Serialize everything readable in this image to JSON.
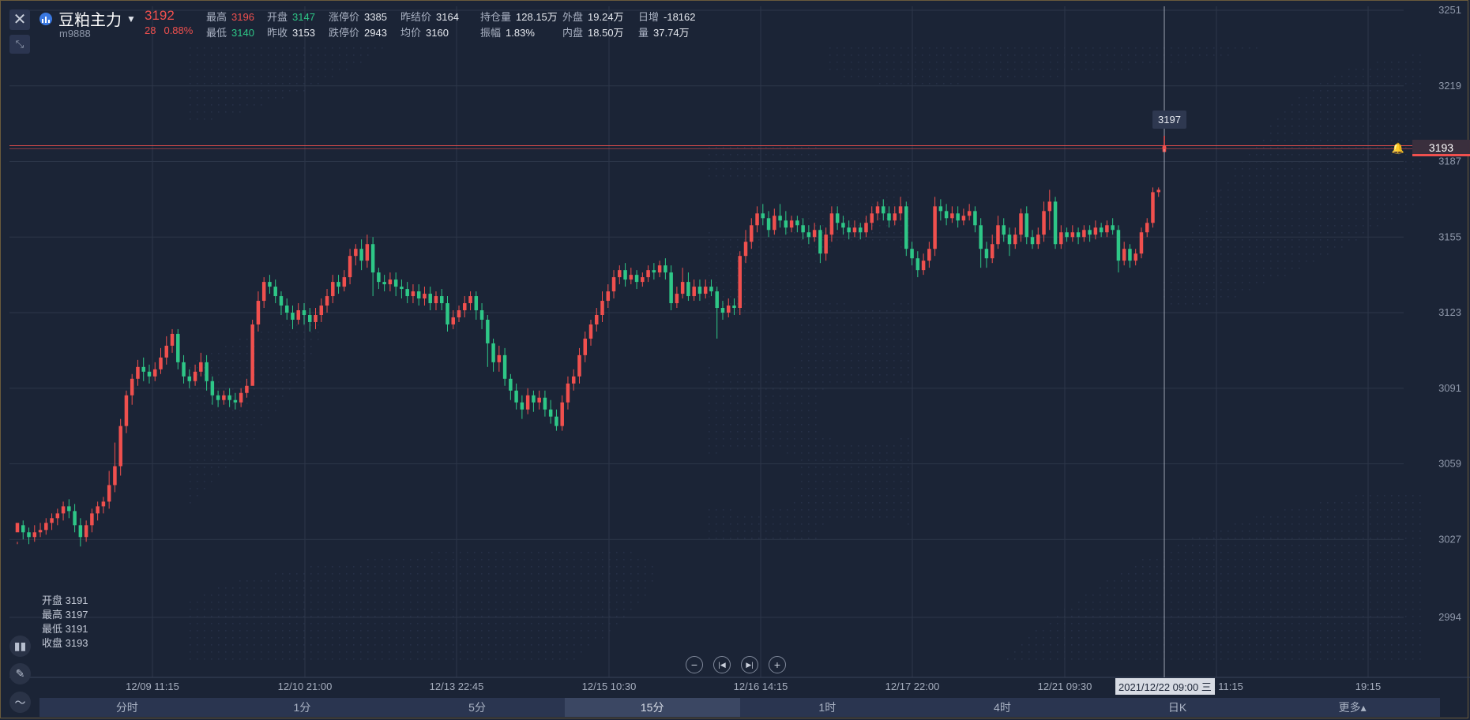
{
  "header": {
    "symbol_name": "豆粕主力",
    "symbol_code": "m9888",
    "last_price": "3192",
    "change": "28",
    "change_pct": "0.88%",
    "stats": [
      {
        "label": "最高",
        "value": "3196",
        "color": "up"
      },
      {
        "label": "开盘",
        "value": "3147",
        "color": "dn"
      },
      {
        "label": "涨停价",
        "value": "3385",
        "color": ""
      },
      {
        "label": "昨结价",
        "value": "3164",
        "color": ""
      },
      {
        "label": "持仓量",
        "value": "128.15万",
        "color": ""
      },
      {
        "label": "外盘",
        "value": "19.24万",
        "color": ""
      },
      {
        "label": "日增",
        "value": "-18162",
        "color": ""
      },
      {
        "label": "最低",
        "value": "3140",
        "color": "dn"
      },
      {
        "label": "昨收",
        "value": "3153",
        "color": ""
      },
      {
        "label": "跌停价",
        "value": "2943",
        "color": ""
      },
      {
        "label": "均价",
        "value": "3160",
        "color": ""
      },
      {
        "label": "振幅",
        "value": "1.83%",
        "color": ""
      },
      {
        "label": "内盘",
        "value": "18.50万",
        "color": ""
      },
      {
        "label": "量",
        "value": "37.74万",
        "color": ""
      }
    ]
  },
  "ohlc_panel": {
    "open": "开盘 3191",
    "high": "最高 3197",
    "low": "最低 3191",
    "close": "收盘 3193"
  },
  "crosshair": {
    "price": "3197",
    "date": "2021/12/22 09:00 三"
  },
  "last_price_tag": "3193",
  "timeframes": [
    "分时",
    "1分",
    "5分",
    "15分",
    "1时",
    "4时",
    "日K",
    "更多▴"
  ],
  "active_timeframe": 3,
  "colors": {
    "up": "#f0504e",
    "down": "#2ec787",
    "background": "#1b2436",
    "grid": "#2c3649"
  },
  "icons": {
    "close": "close-icon",
    "expand": "expand-icon",
    "indicator": "indicator-icon",
    "draw": "pencil-icon",
    "line": "line-chart-icon",
    "zoom_out": "minus-icon",
    "zoom_in": "plus-icon",
    "first": "skip-start-icon",
    "last": "skip-end-icon",
    "alert": "bell-icon"
  },
  "chart_data": {
    "type": "candlestick",
    "title": "",
    "y_ticks": [
      3251,
      3219,
      3187,
      3155,
      3123,
      3091,
      3059,
      3027,
      2994
    ],
    "ylim": [
      2978,
      3255
    ],
    "x_ticks": [
      "12/09 11:15",
      "12/10 21:00",
      "12/13 22:45",
      "12/15 10:30",
      "12/16 14:15",
      "12/17 22:00",
      "12/21 09:30",
      "12/22 11:15",
      "19:15"
    ],
    "grid": true,
    "current_price_line": 3193,
    "crosshair_price": 3197,
    "candles": [
      [
        3030,
        3034,
        3026,
        3025
      ],
      [
        3033,
        3030,
        3035,
        3027
      ],
      [
        3030,
        3028,
        3032,
        3025
      ],
      [
        3028,
        3030,
        3033,
        3026
      ],
      [
        3030,
        3031,
        3034,
        3028
      ],
      [
        3031,
        3034,
        3036,
        3029
      ],
      [
        3034,
        3036,
        3038,
        3031
      ],
      [
        3036,
        3038,
        3040,
        3033
      ],
      [
        3038,
        3041,
        3043,
        3035
      ],
      [
        3041,
        3039,
        3044,
        3036
      ],
      [
        3039,
        3033,
        3042,
        3030
      ],
      [
        3033,
        3028,
        3036,
        3024
      ],
      [
        3028,
        3033,
        3035,
        3026
      ],
      [
        3033,
        3038,
        3040,
        3030
      ],
      [
        3038,
        3041,
        3043,
        3035
      ],
      [
        3041,
        3043,
        3045,
        3038
      ],
      [
        3043,
        3050,
        3056,
        3040
      ],
      [
        3050,
        3058,
        3068,
        3047
      ],
      [
        3058,
        3075,
        3078,
        3054
      ],
      [
        3075,
        3088,
        3090,
        3072
      ],
      [
        3088,
        3095,
        3097,
        3084
      ],
      [
        3095,
        3100,
        3103,
        3092
      ],
      [
        3100,
        3098,
        3104,
        3094
      ],
      [
        3098,
        3096,
        3101,
        3093
      ],
      [
        3096,
        3099,
        3102,
        3094
      ],
      [
        3099,
        3104,
        3108,
        3097
      ],
      [
        3104,
        3109,
        3113,
        3101
      ],
      [
        3109,
        3114,
        3116,
        3106
      ],
      [
        3114,
        3102,
        3116,
        3099
      ],
      [
        3102,
        3096,
        3105,
        3093
      ],
      [
        3096,
        3094,
        3099,
        3091
      ],
      [
        3094,
        3098,
        3101,
        3092
      ],
      [
        3098,
        3102,
        3106,
        3096
      ],
      [
        3102,
        3094,
        3105,
        3090
      ],
      [
        3094,
        3088,
        3096,
        3084
      ],
      [
        3088,
        3086,
        3090,
        3083
      ],
      [
        3086,
        3088,
        3090,
        3084
      ],
      [
        3088,
        3086,
        3091,
        3083
      ],
      [
        3086,
        3085,
        3089,
        3082
      ],
      [
        3085,
        3089,
        3091,
        3083
      ],
      [
        3089,
        3092,
        3095,
        3087
      ],
      [
        3092,
        3118,
        3120,
        3111
      ],
      [
        3118,
        3128,
        3132,
        3115
      ],
      [
        3128,
        3136,
        3138,
        3125
      ],
      [
        3136,
        3134,
        3139,
        3131
      ],
      [
        3134,
        3130,
        3137,
        3127
      ],
      [
        3130,
        3126,
        3132,
        3122
      ],
      [
        3126,
        3123,
        3129,
        3120
      ],
      [
        3123,
        3120,
        3126,
        3116
      ],
      [
        3120,
        3124,
        3127,
        3118
      ],
      [
        3124,
        3122,
        3127,
        3118
      ],
      [
        3122,
        3119,
        3125,
        3115
      ],
      [
        3119,
        3122,
        3125,
        3116
      ],
      [
        3122,
        3126,
        3129,
        3119
      ],
      [
        3126,
        3130,
        3133,
        3123
      ],
      [
        3130,
        3136,
        3139,
        3127
      ],
      [
        3136,
        3134,
        3139,
        3131
      ],
      [
        3134,
        3138,
        3141,
        3132
      ],
      [
        3138,
        3147,
        3150,
        3135
      ],
      [
        3147,
        3150,
        3152,
        3143
      ],
      [
        3150,
        3145,
        3154,
        3141
      ],
      [
        3145,
        3152,
        3156,
        3142
      ],
      [
        3152,
        3140,
        3155,
        3130
      ],
      [
        3140,
        3136,
        3142,
        3133
      ],
      [
        3136,
        3135,
        3139,
        3132
      ],
      [
        3135,
        3137,
        3140,
        3132
      ],
      [
        3137,
        3134,
        3140,
        3130
      ],
      [
        3134,
        3133,
        3137,
        3129
      ],
      [
        3133,
        3130,
        3136,
        3127
      ],
      [
        3130,
        3132,
        3135,
        3127
      ],
      [
        3132,
        3129,
        3135,
        3126
      ],
      [
        3129,
        3131,
        3134,
        3126
      ],
      [
        3131,
        3127,
        3134,
        3124
      ],
      [
        3127,
        3130,
        3132,
        3124
      ],
      [
        3130,
        3127,
        3133,
        3124
      ],
      [
        3127,
        3118,
        3130,
        3115
      ],
      [
        3118,
        3121,
        3124,
        3116
      ],
      [
        3121,
        3124,
        3126,
        3119
      ],
      [
        3124,
        3127,
        3130,
        3121
      ],
      [
        3127,
        3130,
        3132,
        3124
      ],
      [
        3130,
        3124,
        3132,
        3120
      ],
      [
        3124,
        3120,
        3127,
        3116
      ],
      [
        3120,
        3110,
        3122,
        3100
      ],
      [
        3110,
        3102,
        3112,
        3098
      ],
      [
        3102,
        3105,
        3109,
        3098
      ],
      [
        3105,
        3095,
        3108,
        3092
      ],
      [
        3095,
        3090,
        3097,
        3086
      ],
      [
        3090,
        3085,
        3093,
        3082
      ],
      [
        3085,
        3082,
        3088,
        3078
      ],
      [
        3082,
        3088,
        3091,
        3080
      ],
      [
        3088,
        3085,
        3090,
        3081
      ],
      [
        3085,
        3087,
        3090,
        3082
      ],
      [
        3087,
        3082,
        3090,
        3079
      ],
      [
        3082,
        3079,
        3086,
        3076
      ],
      [
        3079,
        3075,
        3082,
        3073
      ],
      [
        3075,
        3085,
        3088,
        3073
      ],
      [
        3085,
        3093,
        3096,
        3082
      ],
      [
        3093,
        3096,
        3099,
        3090
      ],
      [
        3096,
        3105,
        3108,
        3093
      ],
      [
        3105,
        3112,
        3115,
        3102
      ],
      [
        3112,
        3118,
        3120,
        3109
      ],
      [
        3118,
        3122,
        3125,
        3115
      ],
      [
        3122,
        3128,
        3132,
        3119
      ],
      [
        3128,
        3132,
        3135,
        3125
      ],
      [
        3132,
        3138,
        3141,
        3129
      ],
      [
        3138,
        3141,
        3143,
        3135
      ],
      [
        3141,
        3137,
        3144,
        3134
      ],
      [
        3137,
        3139,
        3142,
        3135
      ],
      [
        3139,
        3136,
        3141,
        3133
      ],
      [
        3136,
        3138,
        3140,
        3134
      ],
      [
        3138,
        3141,
        3143,
        3136
      ],
      [
        3141,
        3140,
        3144,
        3137
      ],
      [
        3140,
        3143,
        3145,
        3138
      ],
      [
        3143,
        3140,
        3146,
        3137
      ],
      [
        3140,
        3127,
        3143,
        3124
      ],
      [
        3127,
        3131,
        3134,
        3125
      ],
      [
        3131,
        3136,
        3142,
        3129
      ],
      [
        3136,
        3130,
        3140,
        3128
      ],
      [
        3130,
        3134,
        3137,
        3128
      ],
      [
        3134,
        3131,
        3137,
        3128
      ],
      [
        3131,
        3134,
        3137,
        3129
      ],
      [
        3134,
        3132,
        3137,
        3130
      ],
      [
        3132,
        3125,
        3134,
        3112
      ],
      [
        3125,
        3123,
        3128,
        3120
      ],
      [
        3123,
        3126,
        3129,
        3121
      ],
      [
        3126,
        3125,
        3129,
        3122
      ],
      [
        3125,
        3147,
        3149,
        3122
      ],
      [
        3147,
        3153,
        3158,
        3144
      ],
      [
        3153,
        3160,
        3163,
        3150
      ],
      [
        3160,
        3165,
        3168,
        3157
      ],
      [
        3165,
        3163,
        3169,
        3160
      ],
      [
        3163,
        3158,
        3166,
        3155
      ],
      [
        3158,
        3164,
        3167,
        3156
      ],
      [
        3164,
        3162,
        3169,
        3159
      ],
      [
        3162,
        3159,
        3166,
        3156
      ],
      [
        3159,
        3162,
        3164,
        3157
      ],
      [
        3162,
        3160,
        3164,
        3157
      ],
      [
        3160,
        3157,
        3163,
        3154
      ],
      [
        3157,
        3155,
        3160,
        3152
      ],
      [
        3155,
        3158,
        3161,
        3153
      ],
      [
        3158,
        3148,
        3160,
        3144
      ],
      [
        3148,
        3156,
        3159,
        3145
      ],
      [
        3156,
        3165,
        3168,
        3153
      ],
      [
        3165,
        3161,
        3168,
        3158
      ],
      [
        3161,
        3159,
        3164,
        3156
      ],
      [
        3159,
        3157,
        3162,
        3154
      ],
      [
        3157,
        3159,
        3162,
        3155
      ],
      [
        3159,
        3157,
        3161,
        3154
      ],
      [
        3157,
        3161,
        3164,
        3155
      ],
      [
        3161,
        3165,
        3168,
        3158
      ],
      [
        3165,
        3168,
        3170,
        3162
      ],
      [
        3168,
        3165,
        3171,
        3162
      ],
      [
        3165,
        3162,
        3168,
        3159
      ],
      [
        3162,
        3165,
        3168,
        3160
      ],
      [
        3165,
        3168,
        3172,
        3162
      ],
      [
        3168,
        3150,
        3170,
        3147
      ],
      [
        3150,
        3146,
        3153,
        3143
      ],
      [
        3146,
        3141,
        3149,
        3138
      ],
      [
        3141,
        3145,
        3148,
        3139
      ],
      [
        3145,
        3150,
        3153,
        3142
      ],
      [
        3150,
        3168,
        3172,
        3147
      ],
      [
        3168,
        3166,
        3171,
        3162
      ],
      [
        3166,
        3163,
        3169,
        3160
      ],
      [
        3163,
        3165,
        3168,
        3161
      ],
      [
        3165,
        3162,
        3168,
        3159
      ],
      [
        3162,
        3164,
        3167,
        3160
      ],
      [
        3164,
        3166,
        3169,
        3162
      ],
      [
        3166,
        3160,
        3168,
        3157
      ],
      [
        3160,
        3150,
        3163,
        3142
      ],
      [
        3150,
        3146,
        3153,
        3142
      ],
      [
        3146,
        3152,
        3156,
        3144
      ],
      [
        3152,
        3160,
        3164,
        3150
      ],
      [
        3160,
        3156,
        3163,
        3153
      ],
      [
        3156,
        3152,
        3159,
        3147
      ],
      [
        3152,
        3156,
        3159,
        3150
      ],
      [
        3156,
        3165,
        3167,
        3153
      ],
      [
        3165,
        3155,
        3168,
        3152
      ],
      [
        3155,
        3152,
        3158,
        3150
      ],
      [
        3152,
        3156,
        3159,
        3150
      ],
      [
        3156,
        3166,
        3170,
        3153
      ],
      [
        3166,
        3170,
        3175,
        3158
      ],
      [
        3170,
        3152,
        3172,
        3150
      ],
      [
        3152,
        3157,
        3160,
        3150
      ],
      [
        3157,
        3155,
        3159,
        3153
      ],
      [
        3155,
        3157,
        3160,
        3153
      ],
      [
        3157,
        3155,
        3159,
        3152
      ],
      [
        3155,
        3158,
        3160,
        3153
      ],
      [
        3158,
        3156,
        3160,
        3153
      ],
      [
        3156,
        3159,
        3162,
        3154
      ],
      [
        3159,
        3157,
        3161,
        3155
      ],
      [
        3157,
        3160,
        3162,
        3155
      ],
      [
        3160,
        3158,
        3163,
        3156
      ],
      [
        3158,
        3145,
        3160,
        3140
      ],
      [
        3145,
        3150,
        3153,
        3143
      ],
      [
        3150,
        3145,
        3152,
        3142
      ],
      [
        3145,
        3148,
        3150,
        3143
      ],
      [
        3148,
        3157,
        3159,
        3146
      ],
      [
        3157,
        3161,
        3163,
        3155
      ],
      [
        3161,
        3174,
        3176,
        3159
      ],
      [
        3174,
        3175,
        3176,
        3172
      ],
      [
        3191,
        3193,
        3197,
        3191
      ]
    ]
  }
}
